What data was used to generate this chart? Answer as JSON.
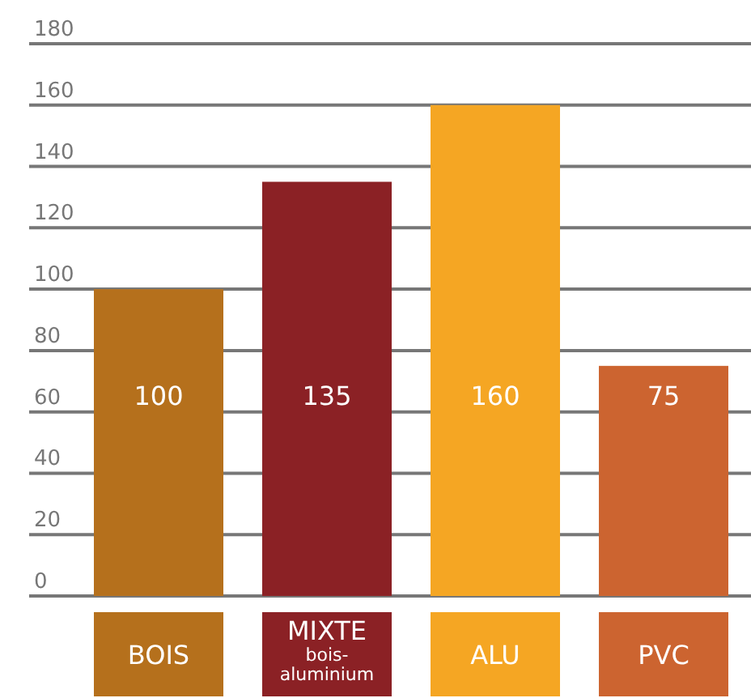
{
  "chart_data": {
    "type": "bar",
    "categories": [
      "BOIS",
      "MIXTE\nbois-\naluminium",
      "ALU",
      "PVC"
    ],
    "values": [
      100,
      135,
      160,
      75
    ],
    "colors": [
      "#b5701c",
      "#8b2125",
      "#f5a623",
      "#cc6430"
    ],
    "ylim": [
      0,
      180
    ],
    "yticks": [
      0,
      20,
      40,
      60,
      80,
      100,
      120,
      140,
      160,
      180
    ],
    "grid": "y",
    "data_labels": true
  }
}
